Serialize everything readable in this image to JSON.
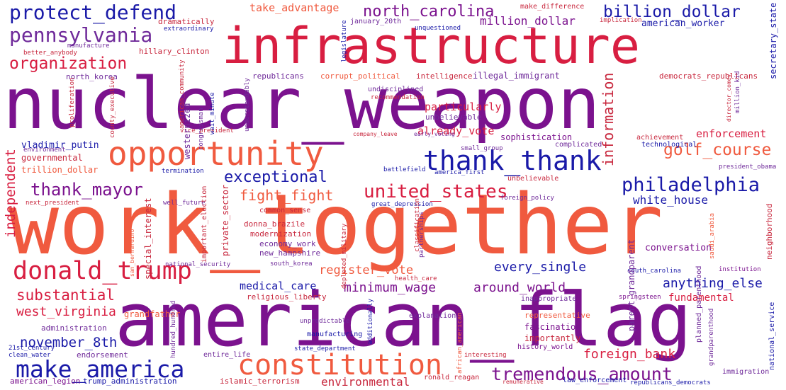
{
  "palette": {
    "purple": "#7b128e",
    "crimson": "#d81e41",
    "coral": "#f05a3f",
    "navy": "#1a1aa8",
    "violet": "#6f2a9a",
    "red": "#c8283e"
  },
  "words": {
    "nuclear_weapon": "nuclear_weapon",
    "work_together": "work_together",
    "american_flag": "american_flag",
    "infrastructure": "infrastructure",
    "opportunity": "opportunity",
    "constitution": "constitution",
    "donald_trump": "donald_trump",
    "make_america": "make_america",
    "thank_thank": "thank_thank",
    "protect_defend": "protect_defend",
    "pennsylvania": "pennsylvania",
    "organization": "organization",
    "north_carolina": "north_carolina",
    "billion_dollar": "billion_dollar",
    "million_dollar": "million_dollar",
    "united_states": "united_states",
    "thank_mayor": "thank_mayor",
    "philadelphia": "philadelphia",
    "golf_course": "golf_course",
    "exceptional": "exceptional",
    "tremendous_amount": "tremendous_amount",
    "take_advantage": "take_advantage",
    "fight_fight": "fight_fight",
    "white_house": "white_house",
    "substantial": "substantial",
    "west_virginia": "west_virginia",
    "november_8th": "november_8th",
    "register_vote": "register_vote",
    "minimum_wage": "minimum_wage",
    "every_single": "every_single",
    "around_world": "around_world",
    "anything_else": "anything_else",
    "foreign_bank": "foreign_bank",
    "information": "information",
    "independent": "independent",
    "particularly": "particularly",
    "already_vote": "already_vote",
    "enforcement": "enforcement",
    "american_worker": "american_worker",
    "vladimir_putin": "vladimir_putin",
    "trillion_dollar": "trillion_dollar",
    "governmental": "governmental",
    "medical_care": "medical_care",
    "environmental": "environmental",
    "fundamental": "fundamental",
    "conversation": "conversation",
    "fascination": "fascination",
    "importantly": "importantly",
    "representative": "representative",
    "administration": "administration",
    "endorsement": "endorsement",
    "grandfather": "grandfather",
    "dramatically": "dramatically",
    "hillary_clinton": "hillary_clinton",
    "north_korea": "north_korea",
    "republicans": "republicans",
    "corrupt_political": "corrupt_political",
    "intelligence": "intelligence",
    "illegal_immigrant": "illegal_immigrant",
    "democrats_republicans": "democrats_republicans",
    "unbelievable": "unbelievable",
    "sophistication": "sophistication",
    "secretary_state": "secretary_state",
    "neighborhood": "neighborhood",
    "economy_work": "economy_work",
    "new_hampshire": "new_hampshire",
    "donna_brazile": "donna_brazile",
    "modernization": "modernization",
    "private_sector": "private_sector",
    "common_sense": "common_sense",
    "make_difference": "make_difference",
    "january_20th": "january_20th",
    "unquestioned": "unquestioned",
    "extraordinary": "extraordinary",
    "manufacture": "manufacture",
    "legislature": "legislature",
    "implication": "implication",
    "better_anybody": "better_anybody",
    "undisciplined": "undisciplined",
    "recommendation": "recommendation",
    "westernized": "westernized",
    "congressman": "congressman",
    "understandably": "understandably",
    "american_community": "american_community",
    "proliferation": "proliferation",
    "county_executive": "county_executive",
    "wait_minute": "wait_minute",
    "vice_president": "vice_president",
    "company_leave": "company_leave",
    "early_voting": "early_voting",
    "small_group": "small_group",
    "complicated": "complicated",
    "achievement": "achievement",
    "technological": "technological",
    "director_comey": "director_comey",
    "million_kid": "million_kid",
    "president_obama": "president_obama",
    "environment": "environment",
    "termination": "termination",
    "battlefield": "battlefield",
    "america_first": "america_first",
    "next_president": "next_president",
    "well_future": "well_future",
    "great_depression": "great_depression",
    "foreign_policy": "foreign_policy",
    "important_election": "important_election",
    "special_interest": "special_interest",
    "san_bernardino": "san_bernardino",
    "national_security": "national_security",
    "south_korea": "south_korea",
    "classification": "classification",
    "partnerships": "partnerships",
    "depleted_military": "depleted_military",
    "saudi_arabia": "saudi_arabia",
    "south_carolina": "south_carolina",
    "institution": "institution",
    "parent_grandparent": "parent_grandparent",
    "health_care": "health_care",
    "religious_liberty": "religious_liberty",
    "springsteen": "springsteen",
    "inappropriate": "inappropriate",
    "explanation": "explanation",
    "unpredictable": "unpredictable",
    "additionally": "additionally",
    "manufacturing": "manufacturing",
    "african_american": "african_american",
    "planned_parenthood": "planned_parenthood",
    "grandparenthood": "grandparenthood",
    "national_service": "national_service",
    "immigration": "immigration",
    "clean_water": "clean_water",
    "21st_century": "21st_century",
    "hundred_hundred": "hundred_hundred",
    "entire_life": "entire_life",
    "state_department": "state_department",
    "interesting": "interesting",
    "history_world": "history_world",
    "american_legion": "american_legion",
    "trump_administration": "trump_administration",
    "islamic_terrorism": "islamic_terrorism",
    "ronald_reagan": "ronald_reagan",
    "remunerative": "remunerative",
    "law_enforcement": "law_enforcement",
    "republicans_democrats": "republicans_democrats"
  }
}
